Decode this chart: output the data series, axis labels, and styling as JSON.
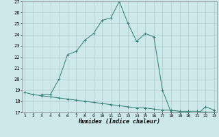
{
  "xlabel": "Humidex (Indice chaleur)",
  "x": [
    1,
    2,
    3,
    4,
    5,
    6,
    7,
    8,
    9,
    10,
    11,
    12,
    13,
    14,
    15,
    16,
    17,
    18,
    19,
    20,
    21,
    22,
    23
  ],
  "line1": [
    18.8,
    18.6,
    18.5,
    18.4,
    18.3,
    18.2,
    18.1,
    18.0,
    17.9,
    17.8,
    17.7,
    17.6,
    17.5,
    17.4,
    17.4,
    17.3,
    17.2,
    17.2,
    17.1,
    17.1,
    17.1,
    17.0,
    17.0
  ],
  "line2": [
    null,
    null,
    18.6,
    18.6,
    20.0,
    22.2,
    22.5,
    23.5,
    24.1,
    25.3,
    25.5,
    27.0,
    25.0,
    23.4,
    24.1,
    23.8,
    19.0,
    17.0,
    17.0,
    17.0,
    16.8,
    17.5,
    17.2
  ],
  "line_color": "#2e7d6e",
  "bg_color": "#cce8e8",
  "grid_color": "#b0cccc",
  "ylim": [
    17,
    27
  ],
  "xlim": [
    1,
    23
  ],
  "yticks": [
    17,
    18,
    19,
    20,
    21,
    22,
    23,
    24,
    25,
    26,
    27
  ],
  "xticks": [
    1,
    2,
    3,
    4,
    5,
    6,
    7,
    8,
    9,
    10,
    11,
    12,
    13,
    14,
    15,
    16,
    17,
    18,
    19,
    20,
    21,
    22,
    23
  ]
}
